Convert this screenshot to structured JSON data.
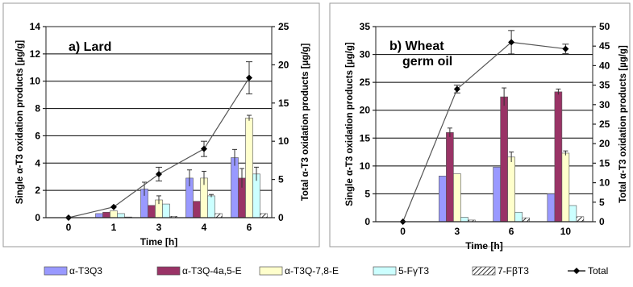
{
  "chart_data": [
    {
      "type": "bar",
      "panel_label": "a) Lard",
      "xlabel": "Time [h]",
      "ylabel_left": "Single α-T3 oxidation products [µg/g]",
      "ylabel_right": "Total α-T3 oxidation products [µg/g]",
      "categories": [
        "0",
        "1",
        "3",
        "4",
        "6"
      ],
      "ylim_left": [
        0,
        14
      ],
      "yticks_left": [
        0,
        2,
        4,
        6,
        8,
        10,
        12,
        14
      ],
      "ylim_right": [
        0,
        25
      ],
      "yticks_right": [
        0,
        5,
        10,
        15,
        20,
        25
      ],
      "grid": true,
      "series": [
        {
          "name": "α-T3Q3",
          "color": "#9999ff",
          "values": [
            0,
            0.3,
            2.1,
            2.9,
            4.4
          ],
          "errors": [
            0,
            0,
            0.5,
            0.6,
            0.6
          ]
        },
        {
          "name": "α-T3Q-4a,5-E",
          "color": "#993366",
          "values": [
            0,
            0.4,
            0.9,
            1.2,
            2.9
          ],
          "errors": [
            0,
            0,
            0,
            0,
            0.7
          ]
        },
        {
          "name": "α-T3Q-7,8-E",
          "color": "#ffffcc",
          "values": [
            0,
            0.5,
            1.3,
            2.9,
            7.3
          ],
          "errors": [
            0,
            0,
            0.3,
            0.5,
            0.2
          ]
        },
        {
          "name": "5-FγT3",
          "color": "#ccffff",
          "values": [
            0,
            0.3,
            1.0,
            1.6,
            3.2
          ],
          "errors": [
            0,
            0,
            0,
            0.1,
            0.5
          ]
        },
        {
          "name": "7-FβT3",
          "color": "#ffffff",
          "hatch": true,
          "values": [
            0,
            0.05,
            0.1,
            0.3,
            0.3
          ],
          "errors": [
            0,
            0,
            0,
            0,
            0
          ]
        }
      ],
      "total": {
        "name": "Total",
        "values": [
          0,
          1.4,
          5.7,
          9.0,
          18.3
        ],
        "errors": [
          0,
          0,
          0.9,
          1.0,
          2.1
        ]
      }
    },
    {
      "type": "bar",
      "panel_label_lines": [
        "b) Wheat",
        "germ oil"
      ],
      "xlabel": "Time [h]",
      "ylabel_left": "Single α-T3 oxidation products [µg/g]",
      "ylabel_right": "Total α-T3 oxidation products [µg/g]",
      "categories": [
        "0",
        "3",
        "6",
        "10"
      ],
      "ylim_left": [
        0,
        35
      ],
      "yticks_left": [
        0,
        5,
        10,
        15,
        20,
        25,
        30,
        35
      ],
      "ylim_right": [
        0,
        50
      ],
      "yticks_right": [
        0,
        5,
        10,
        15,
        20,
        25,
        30,
        35,
        40,
        45,
        50
      ],
      "grid": true,
      "series": [
        {
          "name": "α-T3Q3",
          "color": "#9999ff",
          "values": [
            0,
            8.2,
            9.8,
            5.0
          ],
          "errors": [
            0,
            0,
            0,
            0
          ]
        },
        {
          "name": "α-T3Q-4a,5-E",
          "color": "#993366",
          "values": [
            0,
            16.0,
            22.4,
            23.3
          ],
          "errors": [
            0,
            0.8,
            1.6,
            0.5
          ]
        },
        {
          "name": "α-T3Q-7,8-E",
          "color": "#ffffcc",
          "values": [
            0,
            8.6,
            11.6,
            12.3
          ],
          "errors": [
            0,
            0,
            0.9,
            0.4
          ]
        },
        {
          "name": "5-FγT3",
          "color": "#ccffff",
          "values": [
            0,
            0.8,
            1.7,
            2.9
          ],
          "errors": [
            0,
            0,
            0,
            0
          ]
        },
        {
          "name": "7-FβT3",
          "color": "#ffffff",
          "hatch": true,
          "values": [
            0,
            0.3,
            0.7,
            0.9
          ],
          "errors": [
            0,
            0,
            0,
            0
          ]
        }
      ],
      "total": {
        "name": "Total",
        "values": [
          0,
          34,
          46,
          44.3
        ],
        "errors": [
          0,
          1,
          3,
          1.2
        ]
      }
    }
  ],
  "legend": {
    "placement": "bottom",
    "items": [
      {
        "name": "α-T3Q3",
        "kind": "bar",
        "color": "#9999ff"
      },
      {
        "name": "α-T3Q-4a,5-E",
        "kind": "bar",
        "color": "#993366"
      },
      {
        "name": "α-T3Q-7,8-E",
        "kind": "bar",
        "color": "#ffffcc"
      },
      {
        "name": "5-FγT3",
        "kind": "bar",
        "color": "#ccffff"
      },
      {
        "name": "7-FβT3",
        "kind": "hatch",
        "color": "#ffffff"
      },
      {
        "name": "Total",
        "kind": "line",
        "color": "#000000"
      }
    ]
  }
}
